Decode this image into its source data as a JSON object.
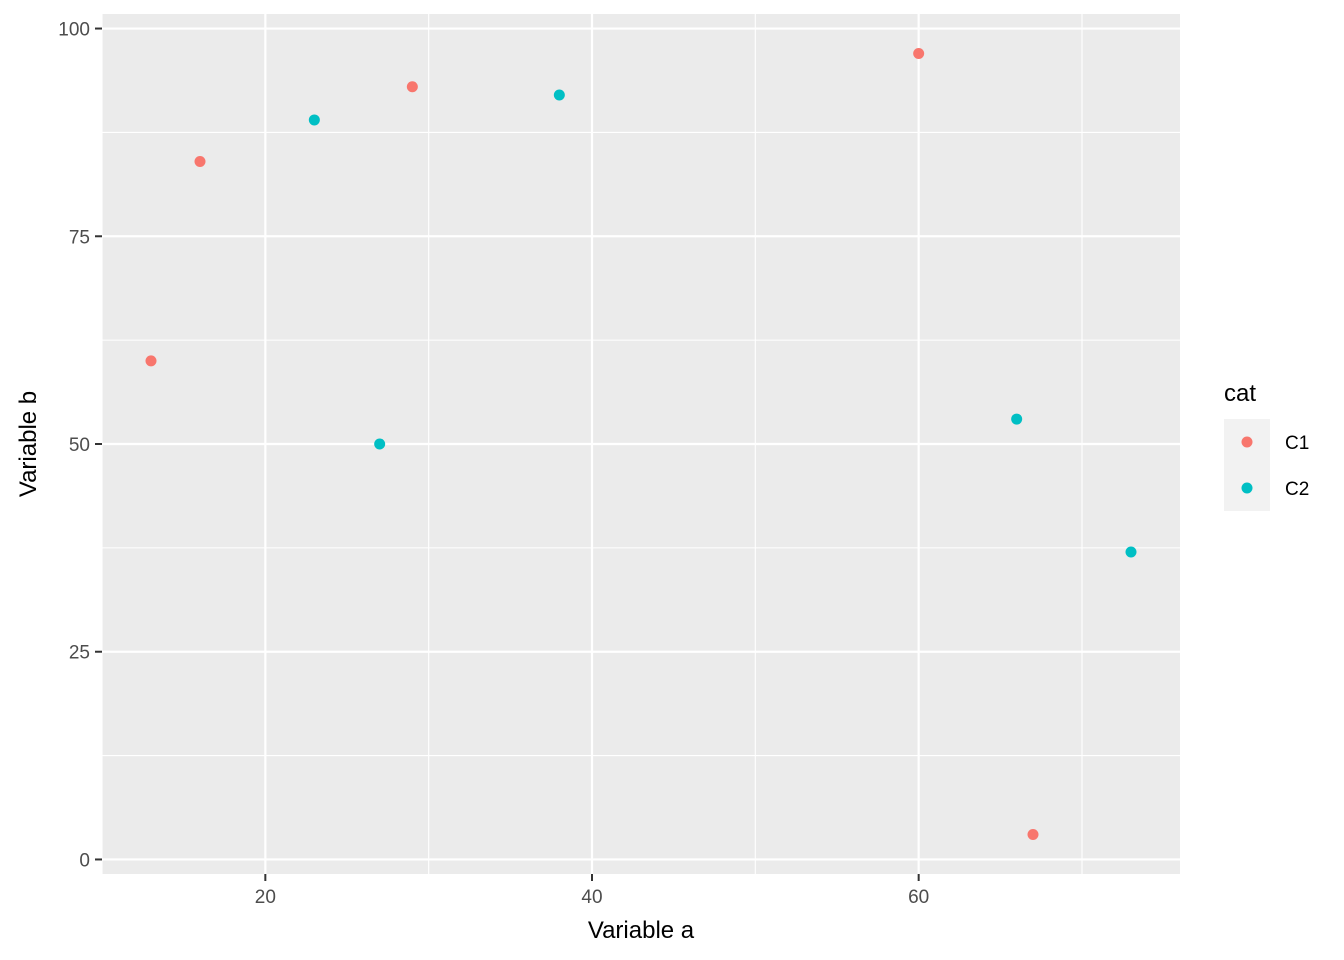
{
  "chart_data": {
    "type": "scatter",
    "title": "",
    "xlabel": "Variable a",
    "ylabel": "Variable b",
    "xlim": [
      10.0,
      76.0
    ],
    "ylim": [
      -1.75,
      101.75
    ],
    "x_ticks": [
      20,
      40,
      60
    ],
    "x_minor": [
      10,
      30,
      50,
      70
    ],
    "y_ticks": [
      0,
      25,
      50,
      75,
      100
    ],
    "y_minor": [
      12.5,
      37.5,
      62.5,
      87.5
    ],
    "grid": true,
    "panel_background": "#ebebeb",
    "grid_color": "#ffffff",
    "legend": {
      "title": "cat",
      "placement": "right",
      "entries": [
        "C1",
        "C2"
      ]
    },
    "series": [
      {
        "name": "C1",
        "color": "#f8766d",
        "points": [
          {
            "x": 13,
            "y": 60
          },
          {
            "x": 16,
            "y": 84
          },
          {
            "x": 29,
            "y": 93
          },
          {
            "x": 60,
            "y": 97
          },
          {
            "x": 67,
            "y": 3
          }
        ]
      },
      {
        "name": "C2",
        "color": "#00bfc4",
        "points": [
          {
            "x": 23,
            "y": 89
          },
          {
            "x": 27,
            "y": 50
          },
          {
            "x": 38,
            "y": 92
          },
          {
            "x": 66,
            "y": 53
          },
          {
            "x": 73,
            "y": 37
          }
        ]
      }
    ]
  }
}
